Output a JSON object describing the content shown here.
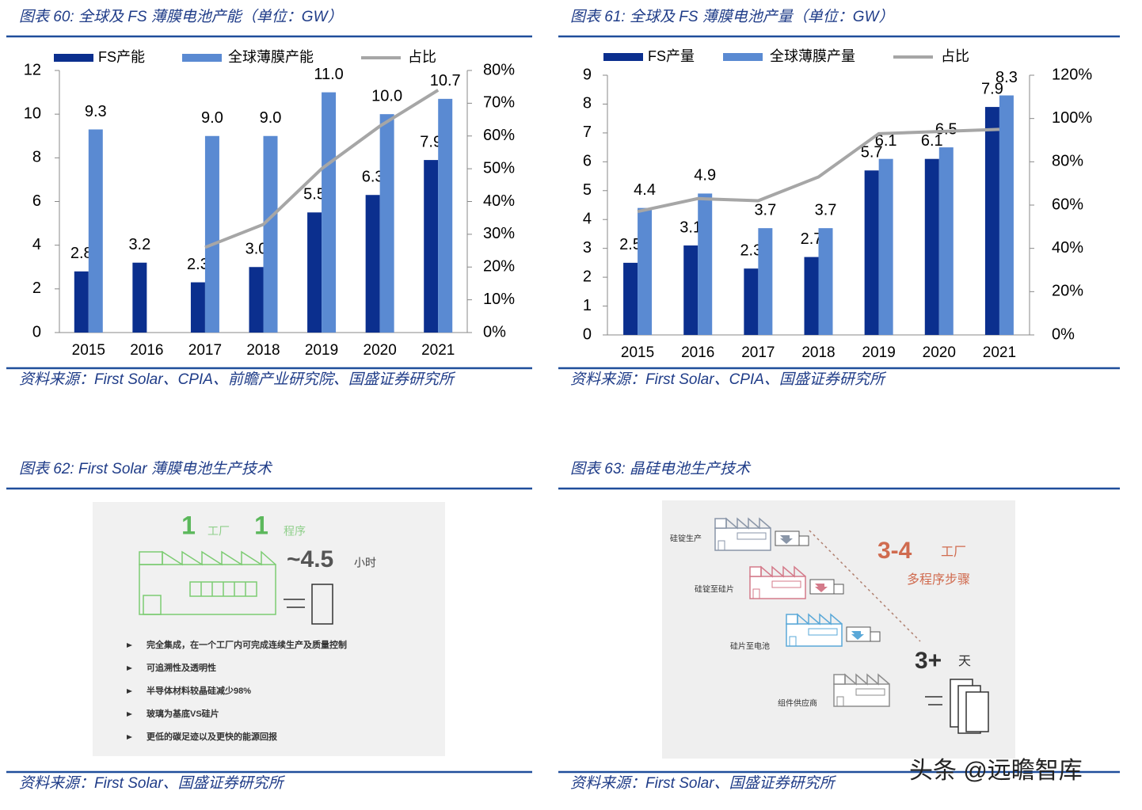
{
  "chart_data": [
    {
      "type": "bar",
      "title": "图表 60:  全球及 FS 薄膜电池产能（单位：GW）",
      "source": "资料来源：First Solar、CPIA、前瞻产业研究院、国盛证券研究所",
      "categories": [
        "2015",
        "2016",
        "2017",
        "2018",
        "2019",
        "2020",
        "2021"
      ],
      "series": [
        {
          "name": "FS产能",
          "color": "#0b2f8e",
          "values": [
            2.8,
            3.2,
            2.3,
            3.0,
            5.5,
            6.3,
            7.9
          ],
          "value_labels": [
            "2.8",
            "3.2",
            "2.3",
            "3.0",
            "5.5",
            "6.3",
            "7.9"
          ]
        },
        {
          "name": "全球薄膜产能",
          "color": "#5a8ad2",
          "values": [
            9.3,
            null,
            9.0,
            9.0,
            11.0,
            10.0,
            10.7
          ],
          "value_labels": [
            "9.3",
            null,
            "9.0",
            "9.0",
            "11.0",
            "10.0",
            "10.7"
          ]
        },
        {
          "name": "占比",
          "type": "line",
          "axis": "y2",
          "color": "#a6a6a6",
          "values": [
            null,
            null,
            26,
            33,
            50,
            63,
            74
          ]
        }
      ],
      "ylim": [
        0,
        12
      ],
      "yticks": [
        0,
        2,
        4,
        6,
        8,
        10,
        12
      ],
      "y2lim": [
        0,
        80
      ],
      "y2ticks": [
        {
          "value": 0,
          "label": "0%"
        },
        {
          "value": 10,
          "label": "10%"
        },
        {
          "value": 20,
          "label": "20%"
        },
        {
          "value": 30,
          "label": "30%"
        },
        {
          "value": 40,
          "label": "40%"
        },
        {
          "value": 50,
          "label": "50%"
        },
        {
          "value": 60,
          "label": "60%"
        },
        {
          "value": 70,
          "label": "70%"
        },
        {
          "value": 80,
          "label": "80%"
        }
      ],
      "grid": false,
      "legend": "top"
    },
    {
      "type": "bar",
      "title": "图表 61:  全球及 FS 薄膜电池产量（单位：GW）",
      "source": "资料来源：First Solar、CPIA、国盛证券研究所",
      "categories": [
        "2015",
        "2016",
        "2017",
        "2018",
        "2019",
        "2020",
        "2021"
      ],
      "series": [
        {
          "name": "FS产量",
          "color": "#0b2f8e",
          "values": [
            2.5,
            3.1,
            2.3,
            2.7,
            5.7,
            6.1,
            7.9
          ]
        },
        {
          "name": "全球薄膜产量",
          "color": "#5a8ad2",
          "values": [
            4.4,
            4.9,
            3.7,
            3.7,
            6.1,
            6.5,
            8.3
          ]
        },
        {
          "name": "占比",
          "type": "line",
          "axis": "y2",
          "color": "#a6a6a6",
          "values": [
            57,
            63,
            62,
            73,
            93,
            94,
            95
          ]
        }
      ],
      "ylim": [
        0,
        9
      ],
      "yticks": [
        0,
        1,
        2,
        3,
        4,
        5,
        6,
        7,
        8,
        9
      ],
      "y2lim": [
        0,
        120
      ],
      "y2ticks": [
        {
          "value": 0,
          "label": "0%"
        },
        {
          "value": 20,
          "label": "20%"
        },
        {
          "value": 40,
          "label": "40%"
        },
        {
          "value": 60,
          "label": "60%"
        },
        {
          "value": 80,
          "label": "80%"
        },
        {
          "value": 100,
          "label": "100%"
        },
        {
          "value": 120,
          "label": "120%"
        }
      ],
      "grid": false,
      "legend": "top"
    }
  ],
  "diagrams": [
    {
      "title": "图表 62:  First Solar 薄膜电池生产技术",
      "source": "资料来源：First Solar、国盛证券研究所",
      "factory_count": "1",
      "factory_label": "工厂",
      "process_count": "1",
      "process_label": "程序",
      "hours": "~4.5",
      "hours_unit": "小时",
      "bullets": [
        "完全集成，在一个工厂内可完成连续生产及质量控制",
        "可追溯性及透明性",
        "半导体材料较晶硅减少98%",
        "玻璃为基底VS硅片",
        "更低的碳足迹以及更快的能源回报"
      ]
    },
    {
      "title": "图表 63:  晶硅电池生产技术",
      "source": "资料来源：First Solar、国盛证券研究所",
      "steps": [
        "硅锭生产",
        "硅锭至硅片",
        "硅片至电池",
        "组件供应商"
      ],
      "factories": "3-4",
      "factories_label": "工厂",
      "steps_label": "多程序步骤",
      "days": "3+",
      "days_unit": "天"
    }
  ],
  "watermark": "头条 @远瞻智库"
}
